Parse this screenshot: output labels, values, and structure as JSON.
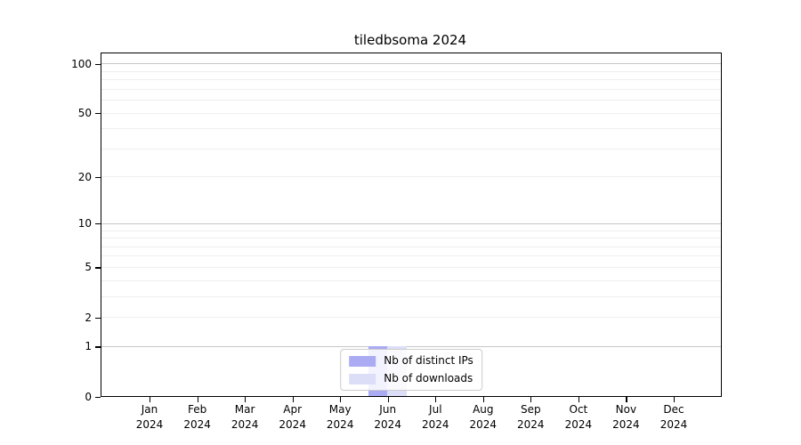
{
  "chart_data": {
    "type": "bar",
    "title": "tiledbsoma 2024",
    "categories": [
      "Jan 2024",
      "Feb 2024",
      "Mar 2024",
      "Apr 2024",
      "May 2024",
      "Jun 2024",
      "Jul 2024",
      "Aug 2024",
      "Sep 2024",
      "Oct 2024",
      "Nov 2024",
      "Dec 2024"
    ],
    "series": [
      {
        "name": "Nb of distinct IPs",
        "color": "#aaabf3",
        "values": [
          0,
          0,
          0,
          0,
          0,
          1,
          0,
          0,
          0,
          0,
          0,
          0
        ]
      },
      {
        "name": "Nb of downloads",
        "color": "#dcdef8",
        "values": [
          0,
          0,
          0,
          0,
          0,
          1,
          0,
          0,
          0,
          0,
          0,
          0
        ]
      }
    ],
    "xlabel": "",
    "ylabel": "",
    "yscale": "log1p",
    "ylim": [
      0,
      115
    ],
    "ytick_values": [
      100,
      50,
      20,
      10,
      5,
      2,
      1,
      0
    ],
    "gridlines": {
      "major": [
        1,
        10,
        100
      ],
      "minor": [
        2,
        3,
        4,
        5,
        6,
        7,
        8,
        9,
        20,
        30,
        40,
        50,
        60,
        70,
        80,
        90
      ]
    },
    "grid": true,
    "legend_position": "lower center"
  },
  "legend": {
    "items": [
      {
        "label": "Nb of distinct IPs",
        "color": "#aaabf3"
      },
      {
        "label": "Nb of downloads",
        "color": "#dcdef8"
      }
    ]
  },
  "colors": {
    "axis": "#000000",
    "text": "#000000",
    "grid_major": "#c6c6c6",
    "grid_minor": "#efefef",
    "background": "#ffffff"
  }
}
